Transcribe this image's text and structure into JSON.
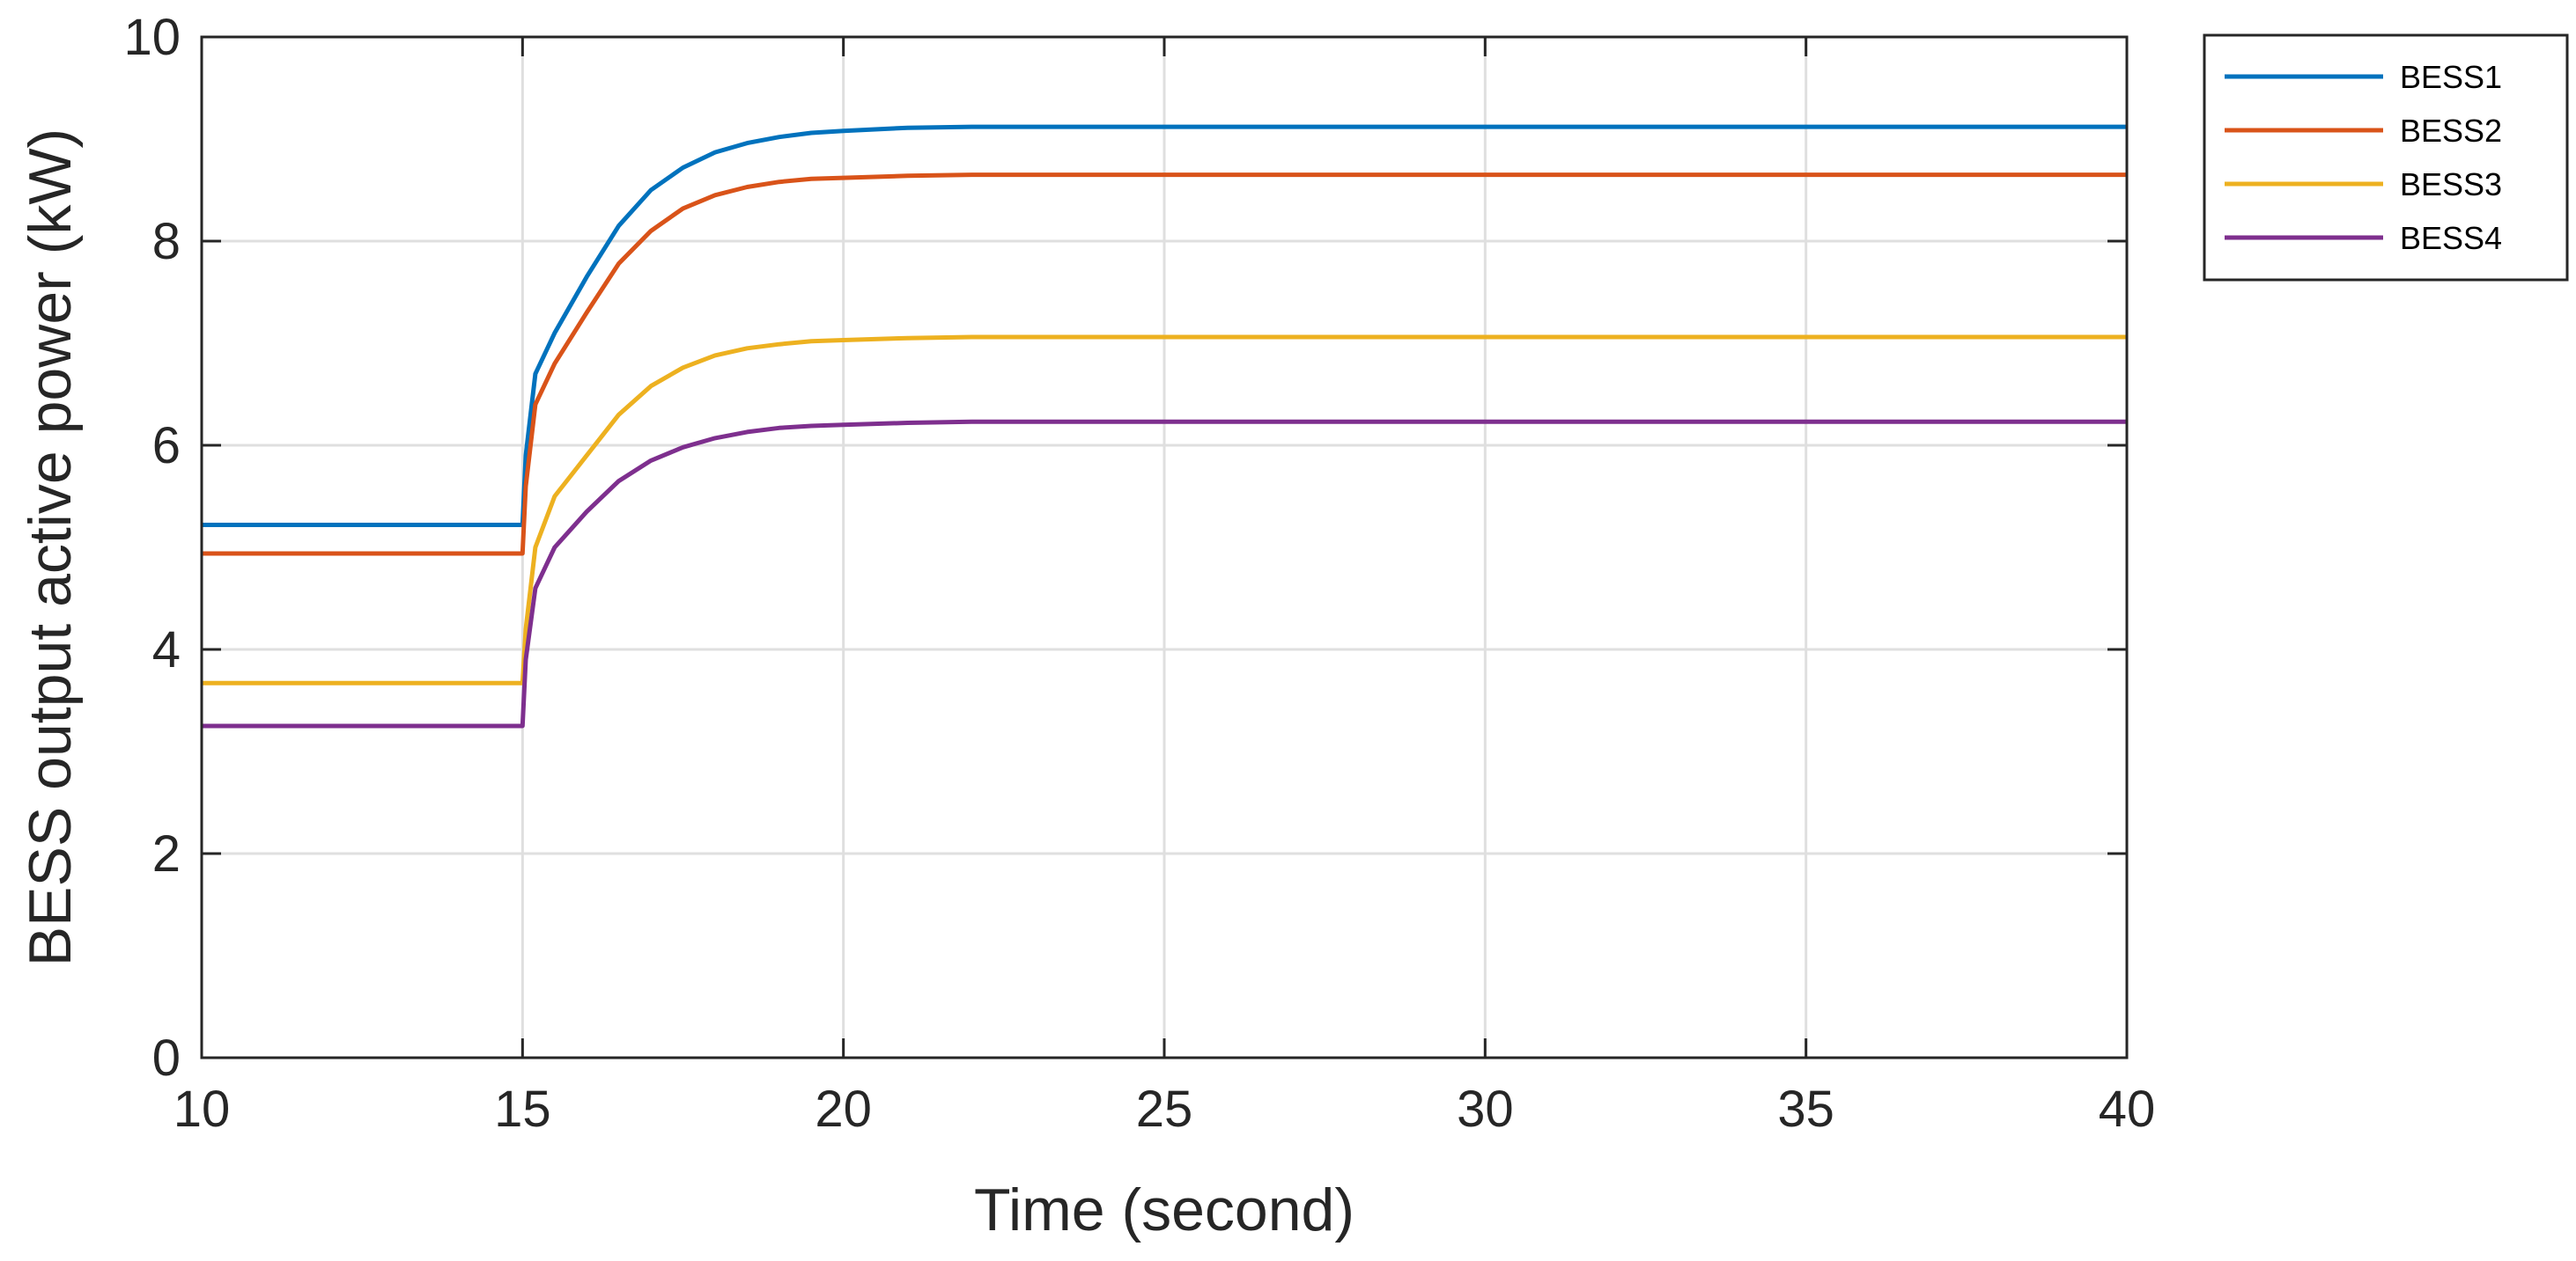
{
  "chart_data": {
    "type": "line",
    "title": "",
    "xlabel": "Time (second)",
    "ylabel": "BESS output active power (kW)",
    "xlim": [
      10,
      40
    ],
    "ylim": [
      0,
      10
    ],
    "xticks": [
      10,
      15,
      20,
      25,
      30,
      35,
      40
    ],
    "yticks": [
      0,
      2,
      4,
      6,
      8,
      10
    ],
    "xtick_labels": [
      "10",
      "15",
      "20",
      "25",
      "30",
      "35",
      "40"
    ],
    "ytick_labels": [
      "0",
      "2",
      "4",
      "6",
      "8",
      "10"
    ],
    "grid": true,
    "legend_position": "outside-top-right",
    "series": [
      {
        "name": "BESS1",
        "color": "#0072BD",
        "x": [
          10,
          15,
          15.05,
          15.2,
          15.5,
          16,
          16.5,
          17,
          17.5,
          18,
          18.5,
          19,
          19.5,
          20,
          21,
          22,
          23,
          25,
          30,
          35,
          40
        ],
        "y": [
          5.22,
          5.22,
          5.9,
          6.7,
          7.1,
          7.65,
          8.15,
          8.5,
          8.72,
          8.87,
          8.96,
          9.02,
          9.06,
          9.08,
          9.11,
          9.12,
          9.12,
          9.12,
          9.12,
          9.12,
          9.12
        ]
      },
      {
        "name": "BESS2",
        "color": "#D95319",
        "x": [
          10,
          15,
          15.05,
          15.2,
          15.5,
          16,
          16.5,
          17,
          17.5,
          18,
          18.5,
          19,
          19.5,
          20,
          21,
          22,
          23,
          25,
          30,
          35,
          40
        ],
        "y": [
          4.94,
          4.94,
          5.6,
          6.4,
          6.8,
          7.3,
          7.78,
          8.1,
          8.32,
          8.45,
          8.53,
          8.58,
          8.61,
          8.62,
          8.64,
          8.65,
          8.65,
          8.65,
          8.65,
          8.65,
          8.65
        ]
      },
      {
        "name": "BESS3",
        "color": "#EDB120",
        "x": [
          10,
          15,
          15.05,
          15.2,
          15.5,
          16,
          16.5,
          17,
          17.5,
          18,
          18.5,
          19,
          19.5,
          20,
          21,
          22,
          23,
          25,
          30,
          35,
          40
        ],
        "y": [
          3.67,
          3.67,
          4.2,
          5.0,
          5.5,
          5.9,
          6.3,
          6.58,
          6.76,
          6.88,
          6.95,
          6.99,
          7.02,
          7.03,
          7.05,
          7.06,
          7.06,
          7.06,
          7.06,
          7.06,
          7.06
        ]
      },
      {
        "name": "BESS4",
        "color": "#7E2F8E",
        "x": [
          10,
          15,
          15.05,
          15.2,
          15.5,
          16,
          16.5,
          17,
          17.5,
          18,
          18.5,
          19,
          19.5,
          20,
          21,
          22,
          23,
          25,
          30,
          35,
          40
        ],
        "y": [
          3.25,
          3.25,
          3.9,
          4.6,
          5.0,
          5.35,
          5.65,
          5.85,
          5.98,
          6.07,
          6.13,
          6.17,
          6.19,
          6.2,
          6.22,
          6.23,
          6.23,
          6.23,
          6.23,
          6.23,
          6.23
        ]
      }
    ]
  }
}
